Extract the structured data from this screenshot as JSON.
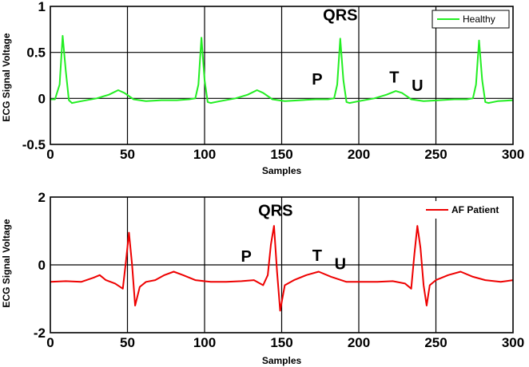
{
  "chart_data": [
    {
      "type": "line",
      "xlabel": "Samples",
      "ylabel": "ECG Signal Voltage",
      "xlim": [
        0,
        300
      ],
      "ylim": [
        -0.5,
        1
      ],
      "xticks": [
        "0",
        "50",
        "100",
        "150",
        "200",
        "250",
        "300"
      ],
      "yticks": [
        "-0.5",
        "0",
        "0.5",
        "1"
      ],
      "grid": true,
      "legend": "top-right",
      "series": [
        {
          "name": "Healthy",
          "color": "#22ee22",
          "x": [
            0,
            3,
            6,
            8,
            10,
            12,
            14,
            20,
            30,
            38,
            44,
            48,
            54,
            62,
            72,
            82,
            90,
            94,
            96,
            98,
            100,
            102,
            104,
            110,
            120,
            128,
            134,
            138,
            144,
            152,
            162,
            172,
            180,
            184,
            186,
            188,
            190,
            192,
            194,
            200,
            210,
            218,
            224,
            228,
            234,
            242,
            252,
            262,
            270,
            274,
            276,
            278,
            280,
            282,
            284,
            290,
            300
          ],
          "y": [
            -0.01,
            -0.01,
            0.15,
            0.68,
            0.3,
            -0.02,
            -0.05,
            -0.03,
            0.0,
            0.04,
            0.09,
            0.06,
            -0.01,
            -0.03,
            -0.02,
            -0.02,
            -0.01,
            0.0,
            0.15,
            0.66,
            0.2,
            -0.04,
            -0.05,
            -0.03,
            0.0,
            0.04,
            0.09,
            0.06,
            -0.01,
            -0.03,
            -0.02,
            -0.01,
            -0.01,
            0.0,
            0.15,
            0.65,
            0.2,
            -0.04,
            -0.05,
            -0.03,
            0.0,
            0.04,
            0.08,
            0.06,
            -0.01,
            -0.03,
            -0.02,
            -0.01,
            -0.01,
            0.0,
            0.15,
            0.63,
            0.2,
            -0.04,
            -0.05,
            -0.03,
            -0.02
          ]
        }
      ],
      "annotations": [
        {
          "text": "QRS",
          "x": 188,
          "y": 0.85
        },
        {
          "text": "P",
          "x": 173,
          "y": 0.15
        },
        {
          "text": "T",
          "x": 223,
          "y": 0.17
        },
        {
          "text": "U",
          "x": 238,
          "y": 0.08
        }
      ]
    },
    {
      "type": "line",
      "xlabel": "Samples",
      "ylabel": "ECG Signal Voltage",
      "xlim": [
        0,
        300
      ],
      "ylim": [
        -2,
        2
      ],
      "xticks": [
        "0",
        "50",
        "100",
        "150",
        "200",
        "250",
        "300"
      ],
      "yticks": [
        "-2",
        "0",
        "2"
      ],
      "grid": true,
      "legend": "top-right",
      "series": [
        {
          "name": "AF Patient",
          "color": "#ee0000",
          "x": [
            0,
            10,
            20,
            28,
            32,
            36,
            42,
            47,
            49,
            51,
            53,
            55,
            58,
            62,
            68,
            74,
            80,
            86,
            94,
            104,
            114,
            124,
            132,
            138,
            141,
            143,
            145,
            147,
            149,
            152,
            158,
            166,
            174,
            182,
            192,
            202,
            212,
            222,
            230,
            234,
            236,
            238,
            240,
            242,
            244,
            246,
            250,
            258,
            266,
            274,
            282,
            292,
            300
          ],
          "y": [
            -0.5,
            -0.48,
            -0.5,
            -0.38,
            -0.3,
            -0.45,
            -0.55,
            -0.7,
            0.1,
            0.95,
            0.0,
            -1.2,
            -0.65,
            -0.5,
            -0.45,
            -0.3,
            -0.2,
            -0.3,
            -0.45,
            -0.5,
            -0.5,
            -0.48,
            -0.45,
            -0.6,
            -0.3,
            0.6,
            1.15,
            -0.2,
            -1.35,
            -0.6,
            -0.45,
            -0.3,
            -0.2,
            -0.35,
            -0.5,
            -0.5,
            -0.5,
            -0.48,
            -0.55,
            -0.7,
            0.3,
            1.15,
            0.5,
            -0.6,
            -1.2,
            -0.6,
            -0.45,
            -0.3,
            -0.2,
            -0.35,
            -0.45,
            -0.5,
            -0.45
          ]
        }
      ],
      "annotations": [
        {
          "text": "QRS",
          "x": 146,
          "y": 1.45
        },
        {
          "text": "P",
          "x": 127,
          "y": 0.1
        },
        {
          "text": "T",
          "x": 173,
          "y": 0.12
        },
        {
          "text": "U",
          "x": 188,
          "y": -0.13
        }
      ]
    }
  ]
}
